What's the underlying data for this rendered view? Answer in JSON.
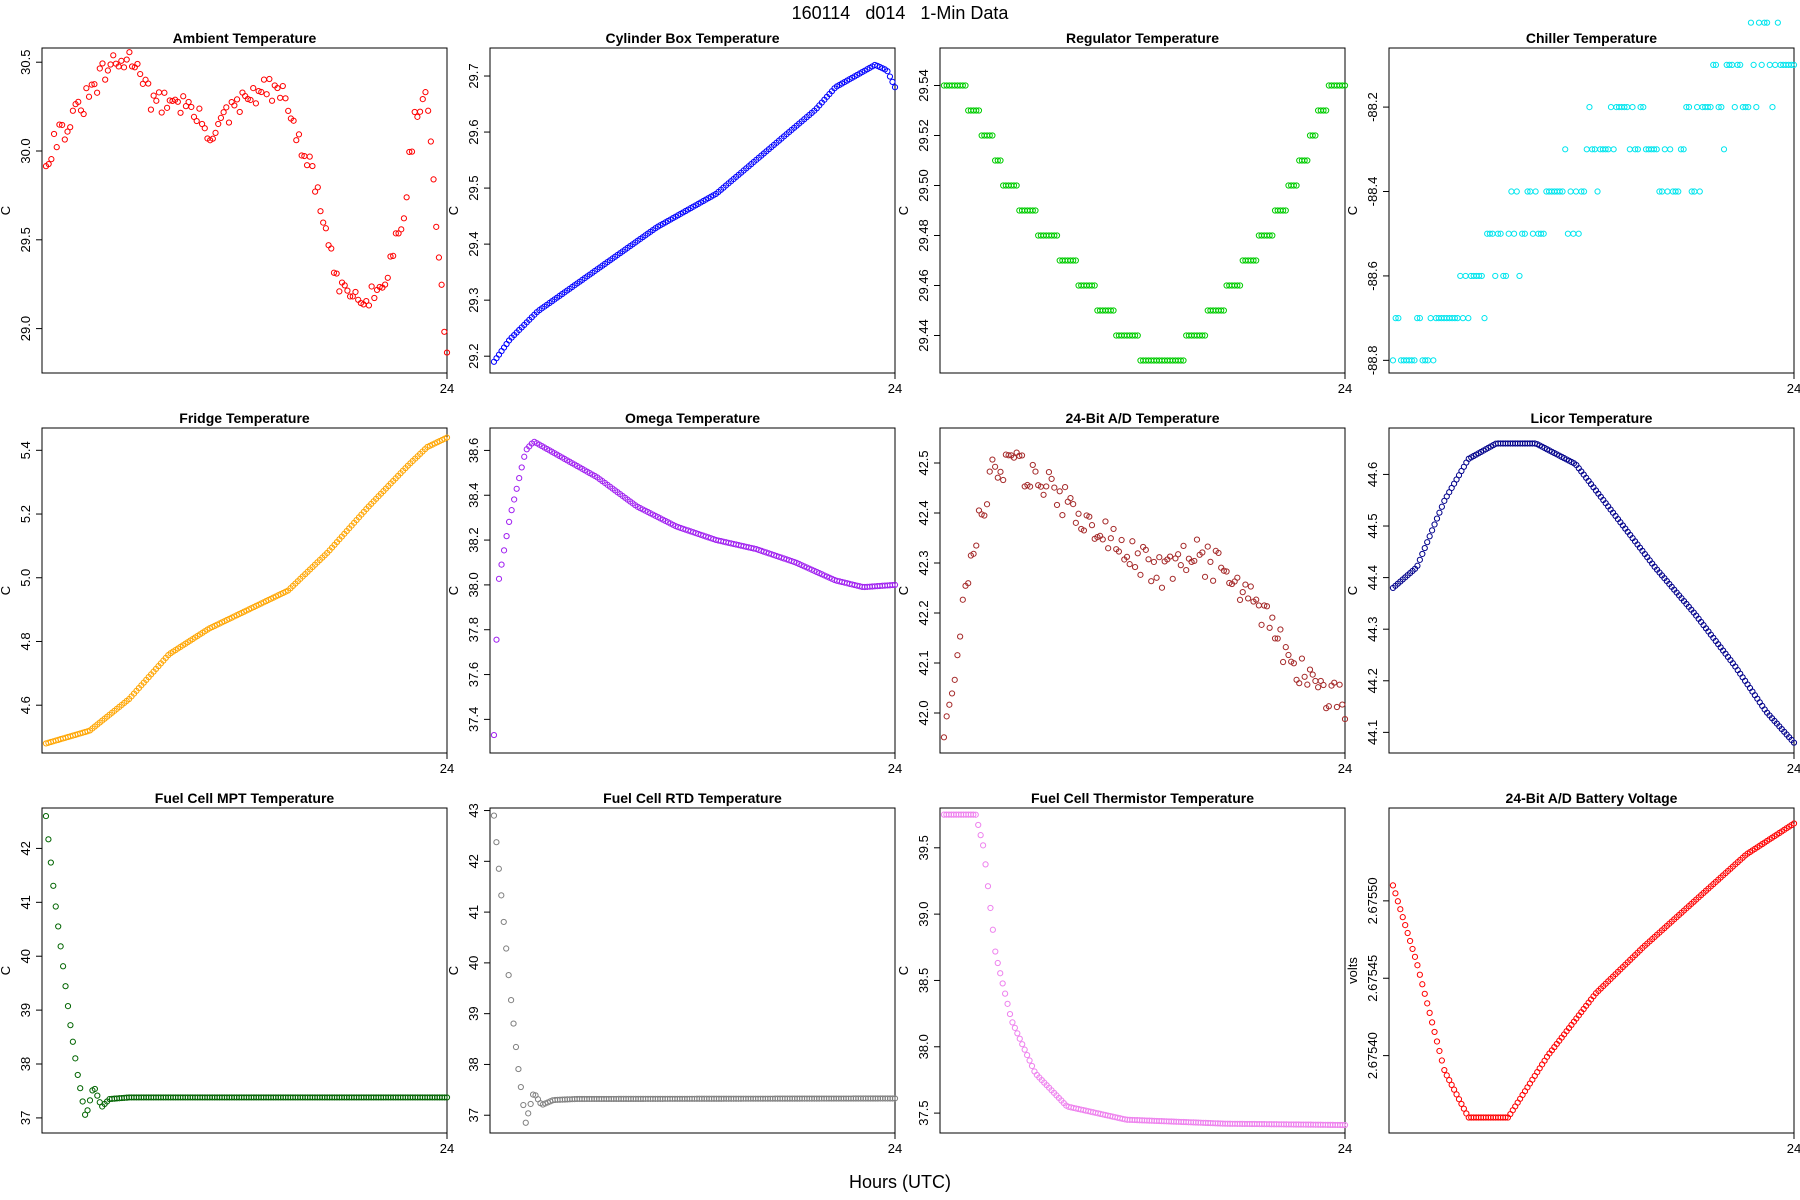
{
  "page_title": "160114   d014   1-Min Data",
  "x_axis_label": "Hours (UTC)",
  "chart_data": [
    {
      "type": "scatter",
      "title": "Ambient Temperature",
      "ylabel": "C",
      "color": "#ff0000",
      "xticks": [
        24
      ],
      "xlim": [
        22.98,
        24
      ],
      "ylim": [
        28.75,
        30.58
      ],
      "yticks": [
        29.0,
        29.5,
        30.0,
        30.5
      ],
      "ytick_decimals": 1,
      "keys": [
        [
          22.99,
          29.95
        ],
        [
          23.02,
          30.1
        ],
        [
          23.05,
          30.15
        ],
        [
          23.08,
          30.25
        ],
        [
          23.11,
          30.35
        ],
        [
          23.14,
          30.45
        ],
        [
          23.18,
          30.5
        ],
        [
          23.22,
          30.52
        ],
        [
          23.26,
          30.25
        ],
        [
          23.3,
          30.3
        ],
        [
          23.35,
          30.25
        ],
        [
          23.4,
          30.1
        ],
        [
          23.45,
          30.2
        ],
        [
          23.5,
          30.3
        ],
        [
          23.55,
          30.35
        ],
        [
          23.6,
          30.28
        ],
        [
          23.63,
          30.0
        ],
        [
          23.66,
          29.9
        ],
        [
          23.69,
          29.6
        ],
        [
          23.72,
          29.25
        ],
        [
          23.76,
          29.2
        ],
        [
          23.8,
          29.2
        ],
        [
          23.83,
          29.2
        ],
        [
          23.86,
          29.4
        ],
        [
          23.89,
          29.65
        ],
        [
          23.92,
          30.2
        ],
        [
          23.95,
          30.33
        ],
        [
          23.97,
          29.7
        ],
        [
          24.0,
          28.8
        ]
      ],
      "jitter": 0.07,
      "count": 150
    },
    {
      "type": "scatter",
      "title": "Cylinder Box Temperature",
      "ylabel": "C",
      "color": "#0000ff",
      "xticks": [
        24
      ],
      "xlim": [
        22.98,
        24
      ],
      "ylim": [
        29.17,
        29.75
      ],
      "yticks": [
        29.2,
        29.3,
        29.4,
        29.5,
        29.6,
        29.7
      ],
      "ytick_decimals": 1,
      "keys": [
        [
          22.99,
          29.19
        ],
        [
          23.03,
          29.23
        ],
        [
          23.1,
          29.28
        ],
        [
          23.2,
          29.33
        ],
        [
          23.3,
          29.38
        ],
        [
          23.4,
          29.43
        ],
        [
          23.5,
          29.47
        ],
        [
          23.55,
          29.49
        ],
        [
          23.6,
          29.52
        ],
        [
          23.7,
          29.58
        ],
        [
          23.8,
          29.64
        ],
        [
          23.85,
          29.68
        ],
        [
          23.9,
          29.7
        ],
        [
          23.95,
          29.72
        ],
        [
          23.98,
          29.71
        ],
        [
          24.0,
          29.68
        ]
      ],
      "jitter": 0,
      "count": 160
    },
    {
      "type": "scatter",
      "title": "Regulator Temperature",
      "ylabel": "C",
      "color": "#00cc00",
      "xticks": [
        24
      ],
      "xlim": [
        22.98,
        24
      ],
      "ylim": [
        29.425,
        29.555
      ],
      "yticks": [
        29.44,
        29.46,
        29.48,
        29.5,
        29.52,
        29.54
      ],
      "ytick_decimals": 2,
      "keys": [
        [
          22.99,
          29.54
        ],
        [
          23.05,
          29.535
        ],
        [
          23.1,
          29.52
        ],
        [
          23.15,
          29.5
        ],
        [
          23.25,
          29.48
        ],
        [
          23.35,
          29.46
        ],
        [
          23.42,
          29.445
        ],
        [
          23.48,
          29.435
        ],
        [
          23.55,
          29.43
        ],
        [
          23.6,
          29.435
        ],
        [
          23.65,
          29.445
        ],
        [
          23.72,
          29.46
        ],
        [
          23.8,
          29.48
        ],
        [
          23.87,
          29.5
        ],
        [
          23.93,
          29.525
        ],
        [
          23.97,
          29.54
        ],
        [
          24.0,
          29.54
        ]
      ],
      "jitter": 0,
      "count": 150,
      "quantize": 0.01
    },
    {
      "type": "scatter",
      "title": "Chiller Temperature",
      "ylabel": "C",
      "color": "#00e5ee",
      "xticks": [
        24
      ],
      "xlim": [
        22.98,
        24
      ],
      "ylim": [
        -88.83,
        -88.06
      ],
      "yticks": [
        -88.8,
        -88.6,
        -88.4,
        -88.2
      ],
      "ytick_decimals": 1,
      "keys": [
        [
          22.99,
          -88.8
        ],
        [
          23.05,
          -88.72
        ],
        [
          23.15,
          -88.7
        ],
        [
          23.2,
          -88.6
        ],
        [
          23.28,
          -88.5
        ],
        [
          23.35,
          -88.45
        ],
        [
          23.45,
          -88.4
        ],
        [
          23.5,
          -88.3
        ],
        [
          23.55,
          -88.22
        ],
        [
          23.65,
          -88.3
        ],
        [
          23.7,
          -88.38
        ],
        [
          23.75,
          -88.3
        ],
        [
          23.8,
          -88.2
        ],
        [
          23.9,
          -88.1
        ],
        [
          24.0,
          -88.12
        ]
      ],
      "jitter": 0.09,
      "count": 150,
      "quantize": 0.1
    },
    {
      "type": "scatter",
      "title": "Fridge Temperature",
      "ylabel": "C",
      "color": "#ffa500",
      "xticks": [
        24
      ],
      "xlim": [
        22.98,
        24
      ],
      "ylim": [
        4.45,
        5.47
      ],
      "yticks": [
        4.6,
        4.8,
        5.0,
        5.2,
        5.4
      ],
      "ytick_decimals": 1,
      "keys": [
        [
          22.99,
          4.48
        ],
        [
          23.1,
          4.52
        ],
        [
          23.2,
          4.62
        ],
        [
          23.3,
          4.76
        ],
        [
          23.4,
          4.84
        ],
        [
          23.5,
          4.9
        ],
        [
          23.6,
          4.96
        ],
        [
          23.7,
          5.08
        ],
        [
          23.8,
          5.22
        ],
        [
          23.9,
          5.35
        ],
        [
          23.95,
          5.41
        ],
        [
          24.0,
          5.44
        ]
      ],
      "jitter": 0,
      "count": 165
    },
    {
      "type": "scatter",
      "title": "Omega Temperature",
      "ylabel": "C",
      "color": "#a020f0",
      "xticks": [
        24
      ],
      "xlim": [
        22.98,
        24
      ],
      "ylim": [
        37.25,
        38.7
      ],
      "yticks": [
        37.4,
        37.6,
        37.8,
        38.0,
        38.2,
        38.4,
        38.6
      ],
      "ytick_decimals": 1,
      "keys": [
        [
          22.99,
          37.33
        ],
        [
          23.0,
          38.0
        ],
        [
          23.03,
          38.3
        ],
        [
          23.07,
          38.6
        ],
        [
          23.09,
          38.64
        ],
        [
          23.15,
          38.58
        ],
        [
          23.25,
          38.48
        ],
        [
          23.35,
          38.35
        ],
        [
          23.45,
          38.26
        ],
        [
          23.55,
          38.2
        ],
        [
          23.65,
          38.16
        ],
        [
          23.75,
          38.1
        ],
        [
          23.85,
          38.02
        ],
        [
          23.92,
          37.99
        ],
        [
          24.0,
          38.0
        ]
      ],
      "jitter": 0,
      "count": 160
    },
    {
      "type": "scatter",
      "title": "24-Bit A/D Temperature",
      "ylabel": "C",
      "color": "#a52a2a",
      "xticks": [
        24
      ],
      "xlim": [
        22.98,
        24
      ],
      "ylim": [
        41.92,
        42.57
      ],
      "yticks": [
        42.0,
        42.1,
        42.2,
        42.3,
        42.4,
        42.5
      ],
      "ytick_decimals": 1,
      "keys": [
        [
          22.99,
          41.95
        ],
        [
          23.02,
          42.05
        ],
        [
          23.04,
          42.25
        ],
        [
          23.08,
          42.38
        ],
        [
          23.12,
          42.5
        ],
        [
          23.2,
          42.48
        ],
        [
          23.3,
          42.42
        ],
        [
          23.4,
          42.35
        ],
        [
          23.5,
          42.3
        ],
        [
          23.55,
          42.28
        ],
        [
          23.62,
          42.32
        ],
        [
          23.7,
          42.28
        ],
        [
          23.78,
          42.22
        ],
        [
          23.85,
          42.12
        ],
        [
          23.92,
          42.06
        ],
        [
          24.0,
          42.02
        ]
      ],
      "jitter": 0.035,
      "count": 150
    },
    {
      "type": "scatter",
      "title": "Licor Temperature",
      "ylabel": "C",
      "color": "#00008b",
      "xticks": [
        24
      ],
      "xlim": [
        22.98,
        24
      ],
      "ylim": [
        44.06,
        44.69
      ],
      "yticks": [
        44.1,
        44.2,
        44.3,
        44.4,
        44.5,
        44.6
      ],
      "ytick_decimals": 1,
      "keys": [
        [
          22.99,
          44.38
        ],
        [
          23.05,
          44.42
        ],
        [
          23.12,
          44.55
        ],
        [
          23.18,
          44.63
        ],
        [
          23.25,
          44.66
        ],
        [
          23.35,
          44.66
        ],
        [
          23.45,
          44.62
        ],
        [
          23.55,
          44.52
        ],
        [
          23.65,
          44.42
        ],
        [
          23.75,
          44.33
        ],
        [
          23.85,
          44.23
        ],
        [
          23.93,
          44.14
        ],
        [
          24.0,
          44.08
        ]
      ],
      "jitter": 0,
      "count": 165
    },
    {
      "type": "scatter",
      "title": "Fuel Cell MPT Temperature",
      "ylabel": "C",
      "color": "#006400",
      "xticks": [
        24
      ],
      "xlim": [
        22.98,
        24
      ],
      "ylim": [
        36.72,
        42.75
      ],
      "yticks": [
        37,
        38,
        39,
        40,
        41,
        42
      ],
      "ytick_decimals": 0,
      "keys": [
        [
          22.99,
          42.6
        ],
        [
          23.01,
          41.2
        ],
        [
          23.03,
          40.0
        ],
        [
          23.05,
          38.8
        ],
        [
          23.07,
          37.8
        ],
        [
          23.09,
          37.0
        ],
        [
          23.11,
          37.6
        ],
        [
          23.13,
          37.2
        ],
        [
          23.15,
          37.35
        ],
        [
          23.2,
          37.38
        ],
        [
          24.0,
          37.38
        ]
      ],
      "jitter": 0,
      "count": 165
    },
    {
      "type": "scatter",
      "title": "Fuel Cell RTD Temperature",
      "ylabel": "C",
      "color": "#808080",
      "xticks": [
        24
      ],
      "xlim": [
        22.98,
        24
      ],
      "ylim": [
        36.65,
        43.05
      ],
      "yticks": [
        37,
        38,
        39,
        40,
        41,
        42,
        43
      ],
      "ytick_decimals": 0,
      "keys": [
        [
          22.99,
          42.9
        ],
        [
          23.01,
          41.2
        ],
        [
          23.03,
          39.5
        ],
        [
          23.05,
          38.0
        ],
        [
          23.07,
          36.85
        ],
        [
          23.09,
          37.45
        ],
        [
          23.11,
          37.2
        ],
        [
          23.14,
          37.3
        ],
        [
          23.2,
          37.32
        ],
        [
          24.0,
          37.33
        ]
      ],
      "jitter": 0,
      "count": 165
    },
    {
      "type": "scatter",
      "title": "Fuel Cell Thermistor Temperature",
      "ylabel": "C",
      "color": "#ee82ee",
      "xticks": [
        24
      ],
      "xlim": [
        22.98,
        24
      ],
      "ylim": [
        37.35,
        39.8
      ],
      "yticks": [
        37.5,
        38.0,
        38.5,
        39.0,
        39.5
      ],
      "ytick_decimals": 1,
      "keys": [
        [
          22.99,
          39.75
        ],
        [
          23.07,
          39.75
        ],
        [
          23.09,
          39.5
        ],
        [
          23.12,
          38.7
        ],
        [
          23.16,
          38.2
        ],
        [
          23.22,
          37.8
        ],
        [
          23.3,
          37.55
        ],
        [
          23.45,
          37.45
        ],
        [
          23.7,
          37.42
        ],
        [
          24.0,
          37.41
        ]
      ],
      "jitter": 0,
      "count": 165
    },
    {
      "type": "scatter",
      "title": "24-Bit A/D Battery Voltage",
      "ylabel": "volts",
      "color": "#ff0000",
      "xticks": [
        24
      ],
      "xlim": [
        22.98,
        24
      ],
      "ylim": [
        2.67535,
        2.67556
      ],
      "yticks": [
        2.6754,
        2.67545,
        2.6755
      ],
      "ytick_decimals": 5,
      "keys": [
        [
          22.99,
          2.67551
        ],
        [
          23.05,
          2.67546
        ],
        [
          23.12,
          2.67539
        ],
        [
          23.18,
          2.67536
        ],
        [
          23.28,
          2.67536
        ],
        [
          23.38,
          2.6754
        ],
        [
          23.5,
          2.67544
        ],
        [
          23.62,
          2.67547
        ],
        [
          23.75,
          2.6755
        ],
        [
          23.88,
          2.67553
        ],
        [
          24.0,
          2.67555
        ]
      ],
      "jitter": 0,
      "count": 165
    }
  ]
}
